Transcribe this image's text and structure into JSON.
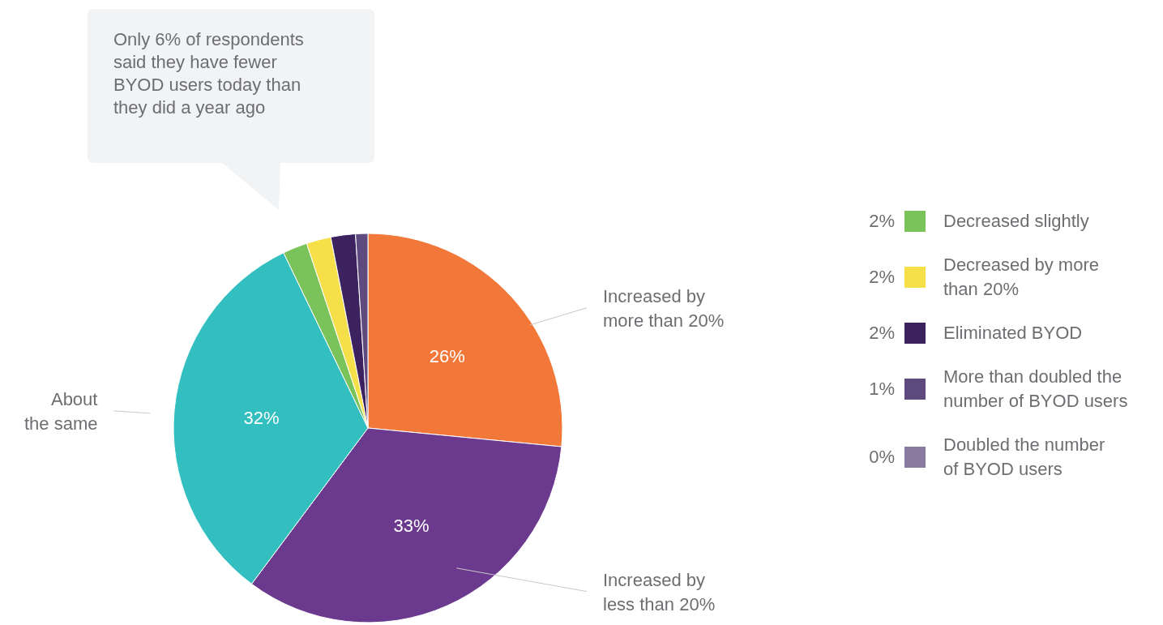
{
  "chart_data": {
    "type": "pie",
    "categories": [
      "Increased by\nmore than 20%",
      "Increased by\nless than 20%",
      "About\nthe same",
      "Decreased slightly",
      "Decreased by more\nthan 20%",
      "Eliminated BYOD",
      "More than doubled the\nnumber of BYOD users",
      "Doubled the number\nof BYOD users"
    ],
    "values": [
      26,
      33,
      32,
      2,
      2,
      2,
      1,
      0
    ],
    "value_labels": [
      "26%",
      "33%",
      "32%",
      "2%",
      "2%",
      "2%",
      "1%",
      "0%"
    ],
    "colors": [
      "#f2783a",
      "#6b3a8f",
      "#33bec0",
      "#7ac25a",
      "#f5e04a",
      "#3c2360",
      "#5f4a80",
      "#8b7aa0"
    ],
    "legend": "right",
    "annotations": [
      "Only 6% of respondents\nsaid they have fewer\nBYOD users today than\nthey did a year ago"
    ]
  }
}
